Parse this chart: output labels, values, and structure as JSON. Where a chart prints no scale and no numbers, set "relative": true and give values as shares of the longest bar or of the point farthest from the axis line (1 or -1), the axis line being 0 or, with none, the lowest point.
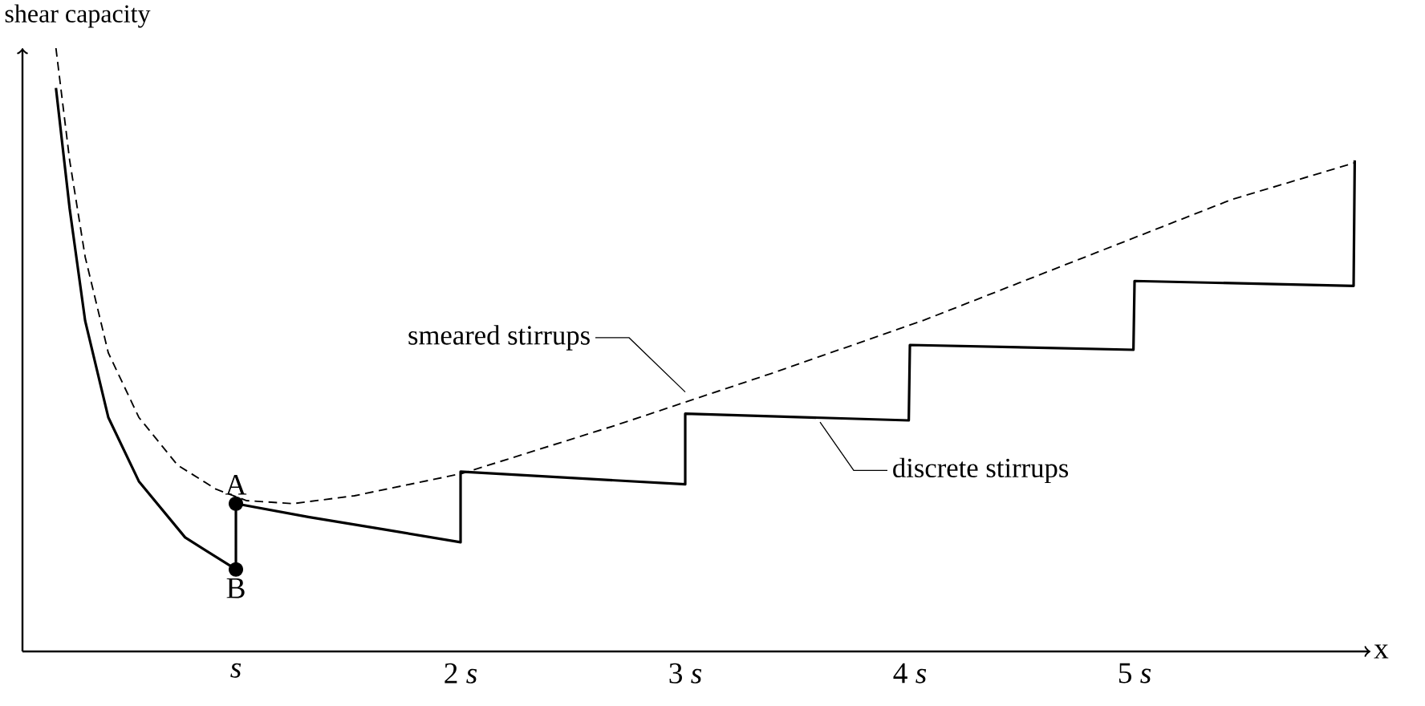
{
  "chart_data": {
    "type": "line",
    "relative": true,
    "ylabel": "shear capacity",
    "xlabel": "x",
    "xlim": [
      0.05,
      6.05
    ],
    "grid": false,
    "legend": false,
    "xticks": [
      {
        "value": 1,
        "label": "*s*"
      },
      {
        "value": 2,
        "label": "2 *s*"
      },
      {
        "value": 3,
        "label": "3 *s*"
      },
      {
        "value": 4,
        "label": "4 *s*"
      },
      {
        "value": 5,
        "label": "5 *s*"
      }
    ],
    "series": [
      {
        "name": "smeared stirrups",
        "color": "#000000",
        "line_style": "dashed",
        "marker": "none",
        "x": [
          0.199,
          0.26,
          0.329,
          0.432,
          0.568,
          0.74,
          0.911,
          1.048,
          1.253,
          1.527,
          2.007,
          2.692,
          3.377,
          4.062,
          4.747,
          5.432,
          5.98
        ],
        "values": [
          1.0,
          0.814,
          0.654,
          0.495,
          0.388,
          0.309,
          0.269,
          0.25,
          0.245,
          0.258,
          0.295,
          0.375,
          0.46,
          0.549,
          0.649,
          0.749,
          0.81
        ]
      },
      {
        "name": "discrete stirrups",
        "color": "#000000",
        "line_style": "solid",
        "marker": "none",
        "x": [
          0.199,
          0.26,
          0.329,
          0.432,
          0.568,
          0.774,
          1,
          1,
          1.322,
          1.664,
          2,
          2,
          3,
          3,
          3.995,
          4,
          4.995,
          5,
          5.975,
          5.98
        ],
        "values": [
          0.934,
          0.734,
          0.548,
          0.388,
          0.282,
          0.189,
          0.136,
          0.245,
          0.223,
          0.202,
          0.181,
          0.298,
          0.277,
          0.394,
          0.383,
          0.508,
          0.5,
          0.614,
          0.606,
          0.814
        ]
      },
      {
        "type": "scatter",
        "color": "#000000",
        "marker": "circle",
        "x": [
          1,
          1
        ],
        "values": [
          0.245,
          0.136
        ]
      }
    ],
    "annotations": [
      {
        "text": "A",
        "x": 1,
        "y": 0.245
      },
      {
        "text": "B",
        "x": 1,
        "y": 0.136
      }
    ]
  }
}
